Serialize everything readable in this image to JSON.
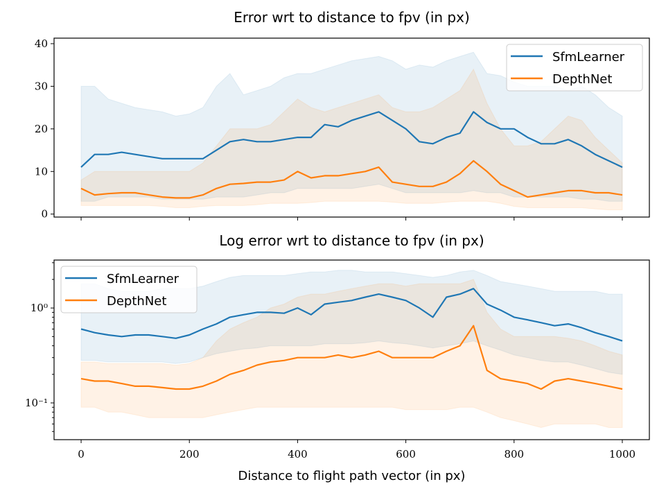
{
  "chart_data": [
    {
      "type": "line",
      "title": "Error wrt to distance to fpv (in px)",
      "x": [
        0,
        25,
        50,
        75,
        100,
        125,
        150,
        175,
        200,
        225,
        250,
        275,
        300,
        325,
        350,
        375,
        400,
        425,
        450,
        475,
        500,
        525,
        550,
        575,
        600,
        625,
        650,
        675,
        700,
        725,
        750,
        775,
        800,
        825,
        850,
        875,
        900,
        925,
        950,
        975,
        1000
      ],
      "xlim": [
        -50,
        1050
      ],
      "xticks": [
        0,
        200,
        400,
        600,
        800,
        1000
      ],
      "xtick_labels": false,
      "ylim": [
        -0.7,
        41.3
      ],
      "yticks": [
        0,
        10,
        20,
        30,
        40
      ],
      "legend": "upper right",
      "series": [
        {
          "name": "SfmLearner",
          "color": "#1f77b4",
          "values": [
            11,
            14,
            14,
            14.5,
            14,
            13.5,
            13,
            13,
            13,
            13,
            15,
            17,
            17.5,
            17,
            17,
            17.5,
            18,
            18,
            21,
            20.5,
            22,
            23,
            24,
            22,
            20,
            17,
            16.5,
            18,
            19,
            24,
            21.5,
            20,
            20,
            18,
            16.5,
            16.5,
            17.5,
            16,
            14,
            12.5,
            11
          ],
          "upper": [
            30,
            30,
            27,
            26,
            25,
            24.5,
            24,
            23,
            23.5,
            25,
            30,
            33,
            28,
            29,
            30,
            32,
            33,
            33,
            34,
            35,
            36,
            36.5,
            37,
            36,
            34,
            35,
            34.5,
            36,
            37,
            38,
            33,
            32.5,
            31,
            30,
            30,
            30,
            29,
            30,
            28,
            25,
            23
          ],
          "lower": [
            3,
            3,
            4,
            4,
            4,
            4,
            3.5,
            3.5,
            3.5,
            3.5,
            4,
            4,
            4,
            4.5,
            5,
            5,
            6,
            6,
            6,
            6,
            6,
            6.5,
            7,
            6,
            5,
            5,
            5,
            5,
            5,
            5.5,
            5,
            5,
            4,
            4,
            4,
            4,
            4,
            3.5,
            3.5,
            3,
            3
          ]
        },
        {
          "name": "DepthNet",
          "color": "#ff7f0e",
          "values": [
            6,
            4.5,
            4.8,
            5,
            5,
            4.5,
            4,
            3.8,
            3.8,
            4.5,
            6,
            7,
            7.2,
            7.5,
            7.5,
            8,
            10,
            8.5,
            9,
            9,
            9.5,
            10,
            11,
            7.5,
            7,
            6.5,
            6.5,
            7.5,
            9.5,
            12.5,
            10,
            7,
            5.5,
            4,
            4.5,
            5,
            5.5,
            5.5,
            5,
            5,
            4.5
          ],
          "upper": [
            8,
            10,
            10,
            10,
            10,
            10,
            10,
            10,
            10,
            12,
            16,
            20,
            20,
            20,
            21,
            24,
            27,
            25,
            24,
            25,
            26,
            27,
            28,
            25,
            24,
            24,
            25,
            27,
            29,
            34,
            26,
            20,
            16,
            16,
            17,
            20,
            23,
            22,
            18,
            15,
            12
          ],
          "lower": [
            2,
            2,
            2,
            2,
            2,
            2,
            1.8,
            1.5,
            1.5,
            1.8,
            2,
            2,
            2,
            2.2,
            2.5,
            2.5,
            2.5,
            2.7,
            3,
            3,
            3,
            3,
            3,
            2.8,
            2.5,
            2.5,
            2.5,
            2.8,
            3,
            3,
            3,
            2.5,
            1.8,
            1.5,
            1.5,
            1.5,
            1.5,
            1.5,
            1.2,
            1,
            1
          ]
        }
      ]
    },
    {
      "type": "line",
      "title": "Log error wrt to distance to fpv (in px)",
      "xlabel": "Distance to flight path vector (in px)",
      "x": [
        0,
        25,
        50,
        75,
        100,
        125,
        150,
        175,
        200,
        225,
        250,
        275,
        300,
        325,
        350,
        375,
        400,
        425,
        450,
        475,
        500,
        525,
        550,
        575,
        600,
        625,
        650,
        675,
        700,
        725,
        750,
        775,
        800,
        825,
        850,
        875,
        900,
        925,
        950,
        975,
        1000
      ],
      "xlim": [
        -50,
        1050
      ],
      "xticks": [
        0,
        200,
        400,
        600,
        800,
        1000
      ],
      "xtick_labels": true,
      "yscale": "log",
      "ylim": [
        0.041,
        3.2
      ],
      "yticks": [
        {
          "value": 0.1,
          "label": "10⁻¹"
        },
        {
          "value": 1,
          "label": "10⁰"
        }
      ],
      "yminor": [
        0.05,
        0.06,
        0.07,
        0.08,
        0.09,
        0.2,
        0.3,
        0.4,
        0.5,
        0.6,
        0.7,
        0.8,
        0.9,
        2,
        3
      ],
      "legend": "upper left",
      "series": [
        {
          "name": "SfmLearner",
          "color": "#1f77b4",
          "values": [
            0.6,
            0.55,
            0.52,
            0.5,
            0.52,
            0.52,
            0.5,
            0.48,
            0.52,
            0.6,
            0.68,
            0.8,
            0.85,
            0.9,
            0.9,
            0.88,
            1.0,
            0.85,
            1.1,
            1.15,
            1.2,
            1.3,
            1.4,
            1.3,
            1.2,
            1.0,
            0.8,
            1.3,
            1.4,
            1.6,
            1.1,
            0.95,
            0.8,
            0.75,
            0.7,
            0.65,
            0.68,
            0.62,
            0.55,
            0.5,
            0.45
          ],
          "upper": [
            1.8,
            1.8,
            1.6,
            1.5,
            1.5,
            1.5,
            1.6,
            1.6,
            1.6,
            1.7,
            1.9,
            2.1,
            2.2,
            2.2,
            2.2,
            2.2,
            2.3,
            2.4,
            2.4,
            2.5,
            2.5,
            2.4,
            2.4,
            2.4,
            2.3,
            2.2,
            2.1,
            2.2,
            2.4,
            2.5,
            2.2,
            1.9,
            1.8,
            1.7,
            1.6,
            1.5,
            1.5,
            1.5,
            1.5,
            1.4,
            1.4
          ],
          "lower": [
            0.28,
            0.28,
            0.27,
            0.27,
            0.27,
            0.27,
            0.27,
            0.26,
            0.27,
            0.3,
            0.33,
            0.35,
            0.37,
            0.38,
            0.4,
            0.4,
            0.4,
            0.4,
            0.42,
            0.42,
            0.42,
            0.43,
            0.45,
            0.43,
            0.42,
            0.4,
            0.38,
            0.4,
            0.42,
            0.45,
            0.4,
            0.36,
            0.32,
            0.3,
            0.28,
            0.27,
            0.27,
            0.25,
            0.23,
            0.21,
            0.2
          ]
        },
        {
          "name": "DepthNet",
          "color": "#ff7f0e",
          "values": [
            0.18,
            0.17,
            0.17,
            0.16,
            0.15,
            0.15,
            0.145,
            0.14,
            0.14,
            0.15,
            0.17,
            0.2,
            0.22,
            0.25,
            0.27,
            0.28,
            0.3,
            0.3,
            0.3,
            0.32,
            0.3,
            0.32,
            0.35,
            0.3,
            0.3,
            0.3,
            0.3,
            0.35,
            0.4,
            0.65,
            0.22,
            0.18,
            0.17,
            0.16,
            0.14,
            0.17,
            0.18,
            0.17,
            0.16,
            0.15,
            0.14
          ],
          "upper": [
            0.27,
            0.27,
            0.26,
            0.26,
            0.26,
            0.26,
            0.26,
            0.25,
            0.26,
            0.3,
            0.45,
            0.6,
            0.7,
            0.8,
            1.0,
            1.1,
            1.3,
            1.4,
            1.4,
            1.5,
            1.6,
            1.7,
            1.8,
            1.8,
            1.7,
            1.8,
            1.8,
            1.8,
            1.8,
            2.0,
            0.9,
            0.6,
            0.5,
            0.5,
            0.5,
            0.5,
            0.48,
            0.45,
            0.4,
            0.35,
            0.32
          ],
          "lower": [
            0.09,
            0.09,
            0.08,
            0.08,
            0.075,
            0.07,
            0.07,
            0.07,
            0.07,
            0.07,
            0.075,
            0.08,
            0.085,
            0.09,
            0.09,
            0.09,
            0.09,
            0.09,
            0.09,
            0.09,
            0.09,
            0.09,
            0.09,
            0.09,
            0.085,
            0.085,
            0.085,
            0.085,
            0.09,
            0.09,
            0.08,
            0.07,
            0.065,
            0.06,
            0.055,
            0.06,
            0.06,
            0.06,
            0.06,
            0.055,
            0.055
          ]
        }
      ]
    }
  ]
}
